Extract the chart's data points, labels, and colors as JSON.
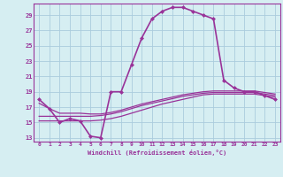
{
  "xlabel": "Windchill (Refroidissement éolien,°C)",
  "bg_color": "#d6eef2",
  "grid_color": "#aaccdd",
  "line_color": "#993399",
  "x_ticks": [
    0,
    1,
    2,
    3,
    4,
    5,
    6,
    7,
    8,
    9,
    10,
    11,
    12,
    13,
    14,
    15,
    16,
    17,
    18,
    19,
    20,
    21,
    22,
    23
  ],
  "y_ticks": [
    13,
    15,
    17,
    19,
    21,
    23,
    25,
    27,
    29
  ],
  "xlim": [
    -0.5,
    23.5
  ],
  "ylim": [
    12.5,
    30.5
  ],
  "series": [
    {
      "x": [
        0,
        1,
        2,
        3,
        4,
        5,
        6,
        7,
        8,
        9,
        10,
        11,
        12,
        13,
        14,
        15,
        16,
        17,
        18,
        19,
        20,
        21,
        22,
        23
      ],
      "y": [
        18.0,
        16.8,
        15.0,
        15.5,
        15.2,
        13.2,
        13.0,
        19.0,
        19.0,
        22.5,
        26.0,
        28.5,
        29.5,
        30.0,
        30.0,
        29.5,
        29.0,
        28.5,
        20.5,
        19.5,
        19.0,
        19.0,
        18.5,
        18.0
      ],
      "marker": "D",
      "markersize": 2.5,
      "linewidth": 1.2
    },
    {
      "x": [
        0,
        1,
        2,
        3,
        4,
        5,
        6,
        7,
        8,
        9,
        10,
        11,
        12,
        13,
        14,
        15,
        16,
        17,
        18,
        19,
        20,
        21,
        22,
        23
      ],
      "y": [
        15.2,
        15.2,
        15.2,
        15.2,
        15.2,
        15.2,
        15.3,
        15.5,
        15.8,
        16.2,
        16.6,
        17.0,
        17.4,
        17.7,
        18.0,
        18.3,
        18.6,
        18.7,
        18.7,
        18.7,
        18.7,
        18.7,
        18.5,
        18.3
      ],
      "marker": null,
      "markersize": 0,
      "linewidth": 0.9
    },
    {
      "x": [
        0,
        1,
        2,
        3,
        4,
        5,
        6,
        7,
        8,
        9,
        10,
        11,
        12,
        13,
        14,
        15,
        16,
        17,
        18,
        19,
        20,
        21,
        22,
        23
      ],
      "y": [
        15.8,
        15.8,
        15.8,
        15.8,
        15.8,
        15.8,
        15.9,
        16.1,
        16.4,
        16.8,
        17.2,
        17.5,
        17.8,
        18.1,
        18.4,
        18.6,
        18.8,
        18.9,
        18.9,
        18.9,
        18.9,
        18.9,
        18.7,
        18.5
      ],
      "marker": null,
      "markersize": 0,
      "linewidth": 0.9
    },
    {
      "x": [
        0,
        1,
        2,
        3,
        4,
        5,
        6,
        7,
        8,
        9,
        10,
        11,
        12,
        13,
        14,
        15,
        16,
        17,
        18,
        19,
        20,
        21,
        22,
        23
      ],
      "y": [
        17.5,
        16.8,
        16.2,
        16.2,
        16.2,
        16.1,
        16.1,
        16.3,
        16.6,
        17.0,
        17.4,
        17.7,
        18.0,
        18.3,
        18.6,
        18.8,
        19.0,
        19.1,
        19.1,
        19.1,
        19.1,
        19.1,
        18.9,
        18.7
      ],
      "marker": null,
      "markersize": 0,
      "linewidth": 0.9
    }
  ]
}
